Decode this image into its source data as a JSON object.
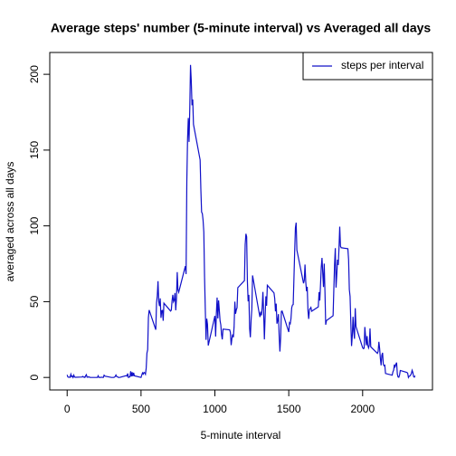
{
  "chart_data": {
    "type": "line",
    "title": "Average steps' number (5-minute interval) vs Averaged all days",
    "x_label": "5-minute interval",
    "y_label": "averaged across all days",
    "x": [
      0,
      5,
      10,
      15,
      20,
      25,
      30,
      35,
      40,
      45,
      50,
      55,
      100,
      105,
      110,
      115,
      120,
      125,
      130,
      135,
      140,
      145,
      150,
      155,
      200,
      205,
      210,
      215,
      220,
      225,
      230,
      235,
      240,
      245,
      250,
      255,
      300,
      305,
      310,
      315,
      320,
      325,
      330,
      335,
      340,
      345,
      350,
      355,
      400,
      405,
      410,
      415,
      420,
      425,
      430,
      435,
      440,
      445,
      450,
      455,
      500,
      505,
      510,
      515,
      520,
      525,
      530,
      535,
      540,
      545,
      550,
      555,
      600,
      605,
      610,
      615,
      620,
      625,
      630,
      635,
      640,
      645,
      650,
      655,
      700,
      705,
      710,
      715,
      720,
      725,
      730,
      735,
      740,
      745,
      750,
      755,
      800,
      805,
      810,
      815,
      820,
      825,
      830,
      835,
      840,
      845,
      850,
      855,
      900,
      905,
      910,
      915,
      920,
      925,
      930,
      935,
      940,
      945,
      950,
      955,
      1000,
      1005,
      1010,
      1015,
      1020,
      1025,
      1030,
      1035,
      1040,
      1045,
      1050,
      1055,
      1100,
      1105,
      1110,
      1115,
      1120,
      1125,
      1130,
      1135,
      1140,
      1145,
      1150,
      1155,
      1200,
      1205,
      1210,
      1215,
      1220,
      1225,
      1230,
      1235,
      1240,
      1245,
      1250,
      1255,
      1300,
      1305,
      1310,
      1315,
      1320,
      1325,
      1330,
      1335,
      1340,
      1345,
      1350,
      1355,
      1400,
      1405,
      1410,
      1415,
      1420,
      1425,
      1430,
      1435,
      1440,
      1445,
      1450,
      1455,
      1500,
      1505,
      1510,
      1515,
      1520,
      1525,
      1530,
      1535,
      1540,
      1545,
      1550,
      1555,
      1600,
      1605,
      1610,
      1615,
      1620,
      1625,
      1630,
      1635,
      1640,
      1645,
      1650,
      1655,
      1700,
      1705,
      1710,
      1715,
      1720,
      1725,
      1730,
      1735,
      1740,
      1745,
      1750,
      1755,
      1800,
      1805,
      1810,
      1815,
      1820,
      1825,
      1830,
      1835,
      1840,
      1845,
      1850,
      1855,
      1900,
      1905,
      1910,
      1915,
      1920,
      1925,
      1930,
      1935,
      1940,
      1945,
      1950,
      1955,
      2000,
      2005,
      2010,
      2015,
      2020,
      2025,
      2030,
      2035,
      2040,
      2045,
      2050,
      2055,
      2100,
      2105,
      2110,
      2115,
      2120,
      2125,
      2130,
      2135,
      2140,
      2145,
      2150,
      2155,
      2200,
      2205,
      2210,
      2215,
      2220,
      2225,
      2230,
      2235,
      2240,
      2245,
      2250,
      2255,
      2300,
      2305,
      2310,
      2315,
      2320,
      2325,
      2330,
      2335,
      2340,
      2345,
      2350,
      2355
    ],
    "series": [
      {
        "name": "steps per interval",
        "color": "#1010c8",
        "values": [
          1.7,
          0.3,
          0.1,
          0.2,
          0.1,
          2.1,
          0.5,
          0.9,
          0,
          1.5,
          0.3,
          0.1,
          0.3,
          0.7,
          0.2,
          0.3,
          0,
          1.1,
          1.8,
          0.2,
          0.2,
          0.4,
          0.3,
          0,
          0,
          0,
          1.1,
          0,
          0,
          0.1,
          0,
          0.2,
          0,
          0,
          1.5,
          0.9,
          0,
          0,
          0,
          0,
          0.2,
          0.6,
          1.6,
          0.6,
          0.5,
          0.1,
          0,
          0,
          1.2,
          0.9,
          2.6,
          0,
          0.3,
          0.4,
          4.1,
          0.7,
          3.5,
          0.8,
          3.1,
          1.1,
          0,
          1.6,
          3,
          2.2,
          3.3,
          3,
          2.1,
          6.1,
          16,
          18.3,
          39.5,
          44.5,
          31.5,
          49.3,
          53.8,
          63.5,
          50,
          47.1,
          52.2,
          39.3,
          44,
          44.2,
          37.4,
          49,
          43.8,
          44.4,
          50.5,
          54.5,
          49.9,
          51,
          55.7,
          44.3,
          52.3,
          69.5,
          57.8,
          56.2,
          73.4,
          68.2,
          129.4,
          157.5,
          171.2,
          155.4,
          177.3,
          206.2,
          195.9,
          179.6,
          183.4,
          167,
          143.5,
          124,
          109.1,
          108.1,
          103.7,
          96,
          66.2,
          45.2,
          24.8,
          38.8,
          35,
          21.1,
          40.6,
          27,
          42.4,
          52.7,
          38.9,
          50.8,
          44.3,
          37.4,
          34.7,
          28.3,
          25.1,
          31.9,
          31.4,
          29.7,
          21.3,
          25.5,
          28.4,
          26.5,
          33.4,
          50,
          42,
          44.6,
          46,
          59.2,
          63.9,
          87.7,
          94.8,
          92.8,
          63.4,
          50.2,
          54.5,
          32.4,
          26.5,
          37.7,
          45.1,
          67.3,
          42.3,
          39.9,
          43.3,
          41,
          46.2,
          56.4,
          42.8,
          25.1,
          40,
          53.5,
          47.3,
          60.8,
          55.8,
          52,
          43.6,
          48.7,
          35.5,
          37.5,
          41.8,
          27.5,
          17.1,
          26.1,
          43.6,
          43.8,
          30,
          36.1,
          35.5,
          38.8,
          46,
          47.8,
          48.1,
          65.3,
          82.9,
          98.7,
          102.1,
          84,
          62.1,
          64.1,
          74.5,
          63.2,
          56.9,
          59.8,
          43.9,
          38.6,
          44.7,
          45.5,
          46.2,
          43.7,
          46.6,
          56.3,
          50.7,
          61.2,
          72.7,
          78.9,
          68.9,
          59.7,
          75.1,
          56.5,
          34.8,
          37.5,
          40.7,
          58,
          74.7,
          85.3,
          59.3,
          67.8,
          77.7,
          74.2,
          85.3,
          99.5,
          86.6,
          85.6,
          84.9,
          77.8,
          58,
          53.4,
          36.3,
          20.7,
          27.4,
          40,
          30.2,
          25.5,
          45.7,
          33.5,
          19.6,
          19,
          19.3,
          33.3,
          26.8,
          21.2,
          27.3,
          21.3,
          19.5,
          21.3,
          32.3,
          20.2,
          15.9,
          17.2,
          23.5,
          19.2,
          12.5,
          8,
          14.7,
          16.3,
          8.7,
          7.8,
          8.1,
          2.6,
          1.5,
          3.7,
          4.8,
          8.5,
          7.1,
          8.7,
          9.8,
          2.2,
          0.3,
          0.1,
          1.6,
          4.6,
          3.3,
          2.8,
          0,
          0.8,
          1,
          1.6,
          2.6,
          4.7,
          3.3,
          0.6,
          0.2,
          1.1
        ]
      }
    ],
    "xlim": [
      -117.75,
      2472.75
    ],
    "ylim": [
      -8.25,
      214.4
    ],
    "xticks": [
      0,
      500,
      1000,
      1500,
      2000
    ],
    "yticks": [
      0,
      50,
      100,
      150,
      200
    ],
    "legend": "topright"
  }
}
